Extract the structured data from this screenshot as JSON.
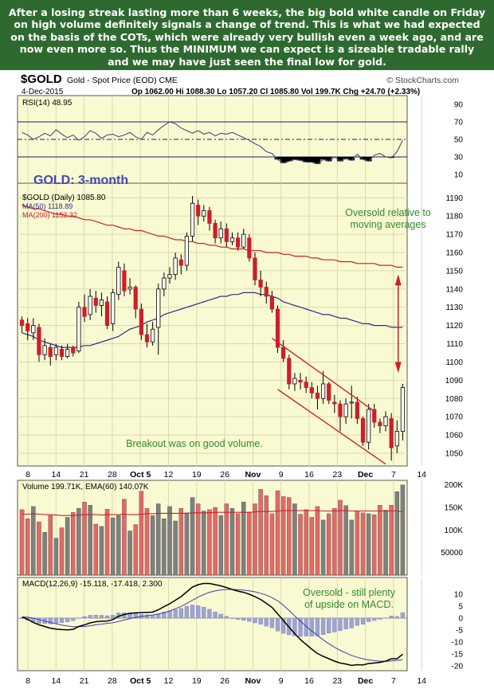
{
  "commentary": "After a losing streak lasting more than 6 weeks, the big bold white candle on Friday on high volume definitely signals a change of trend. This is what we had expected on the basis of the COTs, which were already very bullish even a week ago, and are now even more so. Thus the MINIMUM we can expect is a sizeable tradable rally and we may have just seen the final low for gold.",
  "header": {
    "symbol": "$GOLD",
    "name": "Gold - Spot Price (EOD) CME",
    "date": "4-Dec-2015",
    "watermark": "© StockCharts.com",
    "ohlc": "Op 1062.00  Hi 1088.30  Lo 1057.20  Cl 1085.80  Vol 199.7K  Chg +24.70 (+2.33%)"
  },
  "colors": {
    "panel_bg": "#fafad2",
    "up_candle": "#ffffff",
    "down_candle": "#cc1f2b",
    "ma50": "#2c2c8a",
    "ma200": "#cc1f2b",
    "channel": "#cc1f2b",
    "annotation_green": "#2e8b2e",
    "title_blue": "#4646b4",
    "volume_up": "#808080",
    "volume_down": "#e06a6a",
    "macd_hist": "#9da3d6"
  },
  "x_axis": {
    "labels": [
      "8",
      "14",
      "21",
      "28",
      "Oct 5",
      "12",
      "19",
      "26",
      "Nov",
      "9",
      "16",
      "23",
      "Dec",
      "7",
      "14"
    ]
  },
  "chart_data": [
    {
      "type": "line",
      "panel": "rsi",
      "title": "RSI(14) 48.95",
      "ylim": [
        0,
        100
      ],
      "yticks": [
        10,
        30,
        50,
        70,
        90
      ],
      "reference_lines": [
        30,
        50,
        70
      ],
      "values": [
        58,
        55,
        50,
        53,
        57,
        54,
        61,
        56,
        52,
        55,
        49,
        53,
        60,
        57,
        51,
        55,
        56,
        53,
        55,
        58,
        53,
        50,
        58,
        55,
        61,
        66,
        70,
        68,
        63,
        60,
        57,
        60,
        56,
        58,
        54,
        57,
        56,
        58,
        55,
        52,
        49,
        45,
        42,
        36,
        34,
        27,
        23,
        25,
        27,
        26,
        24,
        24,
        22,
        27,
        25,
        30,
        25,
        28,
        26,
        33,
        27,
        25,
        32,
        34,
        30,
        29,
        36,
        49
      ]
    },
    {
      "type": "candlestick",
      "panel": "price",
      "title": "GOLD: 3-month",
      "legend": [
        "$GOLD (Daily) 1085.80",
        "MA(50) 1118.89",
        "MA(200) 1152.32"
      ],
      "ylim": [
        1043,
        1198
      ],
      "yticks": [
        1050,
        1060,
        1070,
        1080,
        1090,
        1100,
        1110,
        1120,
        1130,
        1140,
        1150,
        1160,
        1170,
        1180,
        1190
      ],
      "candles": [
        {
          "o": 1123,
          "c": 1120,
          "h": 1125,
          "l": 1116
        },
        {
          "o": 1121,
          "c": 1117,
          "h": 1124,
          "l": 1112
        },
        {
          "o": 1116,
          "c": 1120,
          "h": 1124,
          "l": 1112
        },
        {
          "o": 1119,
          "c": 1104,
          "h": 1121,
          "l": 1100
        },
        {
          "o": 1104,
          "c": 1109,
          "h": 1113,
          "l": 1101
        },
        {
          "o": 1108,
          "c": 1103,
          "h": 1110,
          "l": 1098
        },
        {
          "o": 1104,
          "c": 1108,
          "h": 1110,
          "l": 1101
        },
        {
          "o": 1107,
          "c": 1103,
          "h": 1109,
          "l": 1101
        },
        {
          "o": 1103,
          "c": 1107,
          "h": 1110,
          "l": 1102
        },
        {
          "o": 1108,
          "c": 1105,
          "h": 1109,
          "l": 1103
        },
        {
          "o": 1106,
          "c": 1130,
          "h": 1133,
          "l": 1105
        },
        {
          "o": 1130,
          "c": 1125,
          "h": 1137,
          "l": 1122
        },
        {
          "o": 1126,
          "c": 1136,
          "h": 1140,
          "l": 1123
        },
        {
          "o": 1135,
          "c": 1131,
          "h": 1139,
          "l": 1127
        },
        {
          "o": 1131,
          "c": 1134,
          "h": 1138,
          "l": 1125
        },
        {
          "o": 1133,
          "c": 1120,
          "h": 1136,
          "l": 1118
        },
        {
          "o": 1121,
          "c": 1138,
          "h": 1140,
          "l": 1117
        },
        {
          "o": 1137,
          "c": 1152,
          "h": 1155,
          "l": 1134
        },
        {
          "o": 1150,
          "c": 1139,
          "h": 1154,
          "l": 1136
        },
        {
          "o": 1140,
          "c": 1141,
          "h": 1146,
          "l": 1137
        },
        {
          "o": 1141,
          "c": 1129,
          "h": 1142,
          "l": 1124
        },
        {
          "o": 1129,
          "c": 1115,
          "h": 1132,
          "l": 1112
        },
        {
          "o": 1115,
          "c": 1111,
          "h": 1121,
          "l": 1108
        },
        {
          "o": 1111,
          "c": 1118,
          "h": 1122,
          "l": 1109
        },
        {
          "o": 1119,
          "c": 1140,
          "h": 1143,
          "l": 1104
        },
        {
          "o": 1140,
          "c": 1146,
          "h": 1149,
          "l": 1136
        },
        {
          "o": 1146,
          "c": 1148,
          "h": 1152,
          "l": 1143
        },
        {
          "o": 1148,
          "c": 1157,
          "h": 1160,
          "l": 1145
        },
        {
          "o": 1156,
          "c": 1153,
          "h": 1159,
          "l": 1148
        },
        {
          "o": 1153,
          "c": 1169,
          "h": 1171,
          "l": 1150
        },
        {
          "o": 1169,
          "c": 1187,
          "h": 1191,
          "l": 1166
        },
        {
          "o": 1186,
          "c": 1180,
          "h": 1189,
          "l": 1175
        },
        {
          "o": 1180,
          "c": 1183,
          "h": 1186,
          "l": 1177
        },
        {
          "o": 1183,
          "c": 1176,
          "h": 1185,
          "l": 1172
        },
        {
          "o": 1176,
          "c": 1168,
          "h": 1178,
          "l": 1165
        },
        {
          "o": 1168,
          "c": 1173,
          "h": 1177,
          "l": 1165
        },
        {
          "o": 1173,
          "c": 1166,
          "h": 1176,
          "l": 1163
        },
        {
          "o": 1166,
          "c": 1168,
          "h": 1171,
          "l": 1164
        },
        {
          "o": 1168,
          "c": 1163,
          "h": 1171,
          "l": 1161
        },
        {
          "o": 1163,
          "c": 1170,
          "h": 1173,
          "l": 1162
        },
        {
          "o": 1168,
          "c": 1157,
          "h": 1170,
          "l": 1155
        },
        {
          "o": 1157,
          "c": 1145,
          "h": 1160,
          "l": 1142
        },
        {
          "o": 1145,
          "c": 1141,
          "h": 1150,
          "l": 1136
        },
        {
          "o": 1141,
          "c": 1136,
          "h": 1144,
          "l": 1132
        },
        {
          "o": 1136,
          "c": 1129,
          "h": 1139,
          "l": 1127
        },
        {
          "o": 1129,
          "c": 1108,
          "h": 1131,
          "l": 1105
        },
        {
          "o": 1108,
          "c": 1102,
          "h": 1112,
          "l": 1100
        },
        {
          "o": 1102,
          "c": 1088,
          "h": 1104,
          "l": 1085
        },
        {
          "o": 1088,
          "c": 1091,
          "h": 1094,
          "l": 1084
        },
        {
          "o": 1090,
          "c": 1089,
          "h": 1094,
          "l": 1085
        },
        {
          "o": 1089,
          "c": 1086,
          "h": 1092,
          "l": 1083
        },
        {
          "o": 1086,
          "c": 1083,
          "h": 1089,
          "l": 1080
        },
        {
          "o": 1083,
          "c": 1080,
          "h": 1087,
          "l": 1074
        },
        {
          "o": 1080,
          "c": 1088,
          "h": 1095,
          "l": 1077
        },
        {
          "o": 1088,
          "c": 1079,
          "h": 1089,
          "l": 1077
        },
        {
          "o": 1078,
          "c": 1077,
          "h": 1082,
          "l": 1072
        },
        {
          "o": 1077,
          "c": 1070,
          "h": 1079,
          "l": 1062
        },
        {
          "o": 1070,
          "c": 1077,
          "h": 1080,
          "l": 1066
        },
        {
          "o": 1078,
          "c": 1078,
          "h": 1087,
          "l": 1069
        },
        {
          "o": 1078,
          "c": 1069,
          "h": 1081,
          "l": 1066
        },
        {
          "o": 1069,
          "c": 1056,
          "h": 1070,
          "l": 1054
        },
        {
          "o": 1056,
          "c": 1074,
          "h": 1077,
          "l": 1052
        },
        {
          "o": 1074,
          "c": 1067,
          "h": 1077,
          "l": 1064
        },
        {
          "o": 1067,
          "c": 1065,
          "h": 1069,
          "l": 1061
        },
        {
          "o": 1065,
          "c": 1070,
          "h": 1073,
          "l": 1062
        },
        {
          "o": 1069,
          "c": 1053,
          "h": 1072,
          "l": 1046
        },
        {
          "o": 1054,
          "c": 1062,
          "h": 1068,
          "l": 1050
        },
        {
          "o": 1062,
          "c": 1086,
          "h": 1088,
          "l": 1057
        }
      ],
      "ma50": [
        1116,
        1115,
        1114,
        1112,
        1111,
        1110,
        1109,
        1108,
        1108,
        1108,
        1108,
        1109,
        1109,
        1110,
        1111,
        1112,
        1113,
        1114,
        1116,
        1118,
        1119,
        1120,
        1122,
        1123,
        1124,
        1126,
        1127,
        1128,
        1129,
        1130,
        1131,
        1132,
        1133,
        1134,
        1135,
        1136,
        1136,
        1137,
        1137,
        1138,
        1138,
        1138,
        1137,
        1137,
        1136,
        1135,
        1133,
        1132,
        1131,
        1130,
        1129,
        1128,
        1127,
        1126,
        1126,
        1125,
        1124,
        1124,
        1123,
        1122,
        1121,
        1121,
        1120,
        1120,
        1120,
        1119,
        1119,
        1119
      ],
      "ma200": [
        1186,
        1185,
        1184,
        1184,
        1183,
        1182,
        1181,
        1181,
        1180,
        1180,
        1179,
        1178,
        1178,
        1177,
        1176,
        1175,
        1175,
        1174,
        1173,
        1173,
        1172,
        1172,
        1171,
        1170,
        1169,
        1169,
        1168,
        1167,
        1167,
        1166,
        1166,
        1165,
        1165,
        1164,
        1164,
        1163,
        1163,
        1162,
        1162,
        1162,
        1161,
        1161,
        1161,
        1160,
        1160,
        1160,
        1159,
        1159,
        1158,
        1158,
        1158,
        1157,
        1157,
        1156,
        1156,
        1156,
        1155,
        1155,
        1155,
        1154,
        1154,
        1154,
        1154,
        1153,
        1153,
        1153,
        1152,
        1152
      ],
      "annotations": [
        "Oversold relative to moving averages",
        "Breakout was on good volume."
      ]
    },
    {
      "type": "bar",
      "panel": "volume",
      "title": "Volume 199.71K, EMA(60) 140.07K",
      "ylim": [
        0,
        210000
      ],
      "yticks": [
        50000,
        100000,
        150000,
        200000
      ],
      "ytick_labels": [
        "50000",
        "100K",
        "150K",
        "200K"
      ],
      "values": [
        145000,
        125000,
        152000,
        118000,
        95000,
        132000,
        82000,
        105000,
        128000,
        139000,
        148000,
        162000,
        155000,
        113000,
        108000,
        146000,
        127000,
        132000,
        168000,
        98000,
        112000,
        186000,
        148000,
        132000,
        158000,
        125000,
        152000,
        120000,
        148000,
        138000,
        172000,
        158000,
        142000,
        145000,
        150000,
        132000,
        158000,
        148000,
        136000,
        162000,
        140000,
        158000,
        190000,
        176000,
        136000,
        187000,
        174000,
        172000,
        158000,
        135000,
        145000,
        128000,
        152000,
        122000,
        136000,
        148000,
        166000,
        154000,
        122000,
        142000,
        138000,
        136000,
        134000,
        155000,
        144000,
        155000,
        185000,
        200000
      ],
      "ema": [
        135000,
        135000,
        136000,
        135000,
        134000,
        134000,
        133000,
        132000,
        132000,
        132000,
        133000,
        134000,
        134000,
        134000,
        133000,
        134000,
        134000,
        134000,
        135000,
        134000,
        134000,
        135000,
        136000,
        136000,
        137000,
        137000,
        137000,
        137000,
        137000,
        137000,
        138000,
        138000,
        138000,
        138000,
        139000,
        139000,
        139000,
        139000,
        139000,
        139000,
        139000,
        140000,
        141000,
        141000,
        141000,
        142000,
        143000,
        143000,
        143000,
        143000,
        143000,
        143000,
        143000,
        142000,
        142000,
        142000,
        143000,
        143000,
        142000,
        142000,
        142000,
        142000,
        142000,
        142000,
        142000,
        142000,
        142000,
        140000
      ],
      "down_days": [
        true,
        true,
        false,
        true,
        false,
        true,
        false,
        true,
        false,
        true,
        false,
        true,
        false,
        true,
        false,
        true,
        false,
        false,
        true,
        false,
        true,
        true,
        true,
        false,
        false,
        false,
        false,
        false,
        true,
        false,
        false,
        true,
        false,
        true,
        true,
        false,
        true,
        false,
        true,
        false,
        true,
        true,
        true,
        true,
        true,
        true,
        true,
        true,
        false,
        true,
        true,
        true,
        true,
        false,
        true,
        true,
        true,
        false,
        false,
        true,
        true,
        false,
        true,
        true,
        false,
        true,
        false,
        false
      ]
    },
    {
      "type": "line",
      "panel": "macd",
      "title": "MACD(12,26,9) -15.118, -17.418, 2.300",
      "ylim": [
        -22,
        17
      ],
      "yticks": [
        -20,
        -15,
        -10,
        -5,
        0,
        5,
        10
      ],
      "macd": [
        0.5,
        -0.5,
        -1.8,
        -2.8,
        -3.5,
        -4.2,
        -4.6,
        -4.8,
        -4.9,
        -4.7,
        -3.5,
        -2.8,
        -2.0,
        -1.5,
        -1.3,
        -1.2,
        -0.6,
        0.8,
        1.5,
        2.0,
        2.2,
        2.3,
        2.4,
        2.5,
        3.5,
        4.8,
        6.0,
        7.5,
        9.0,
        11.0,
        13.0,
        14.0,
        14.5,
        14.5,
        14.0,
        13.5,
        12.8,
        12.0,
        11.3,
        10.8,
        10.0,
        9.0,
        7.8,
        6.2,
        4.5,
        1.8,
        -1.0,
        -3.8,
        -6.5,
        -9.0,
        -11.0,
        -13.0,
        -14.8,
        -16.0,
        -17.0,
        -18.0,
        -18.8,
        -19.2,
        -19.8,
        -19.5,
        -19.6,
        -19.0,
        -18.8,
        -18.5,
        -18.0,
        -17.0,
        -17.0,
        -15.1
      ],
      "signal": [
        0.5,
        0.4,
        0.0,
        -0.6,
        -1.2,
        -1.8,
        -2.4,
        -2.9,
        -3.3,
        -3.6,
        -3.6,
        -3.5,
        -3.2,
        -2.8,
        -2.5,
        -2.2,
        -1.9,
        -1.4,
        -0.8,
        -0.2,
        0.3,
        0.7,
        1.0,
        1.3,
        1.7,
        2.3,
        3.0,
        3.9,
        4.9,
        6.1,
        7.5,
        8.8,
        9.9,
        10.8,
        11.4,
        11.8,
        12.0,
        12.0,
        11.9,
        11.7,
        11.4,
        11.0,
        10.4,
        9.6,
        8.6,
        7.2,
        5.4,
        3.2,
        0.9,
        -1.3,
        -3.4,
        -5.4,
        -7.3,
        -9.1,
        -10.7,
        -12.2,
        -13.5,
        -14.6,
        -15.6,
        -16.4,
        -17.0,
        -17.5,
        -17.8,
        -18.0,
        -18.1,
        -17.9,
        -17.7,
        -17.4
      ],
      "annotations": [
        "Oversold - still plenty of upside on MACD."
      ]
    }
  ]
}
